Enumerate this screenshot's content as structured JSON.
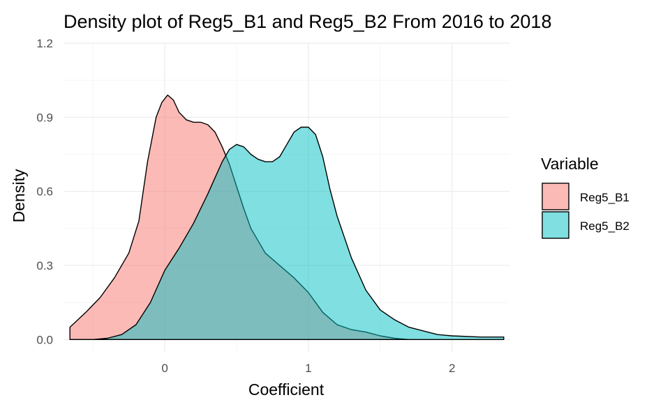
{
  "chart_data": {
    "type": "area",
    "title": "Density plot of Reg5_B1 and Reg5_B2 From 2016 to 2018",
    "xlabel": "Coefficient",
    "ylabel": "Density",
    "xlim": [
      -0.7,
      2.4
    ],
    "ylim": [
      -0.05,
      1.2
    ],
    "x_ticks": [
      0,
      1,
      2
    ],
    "x_tick_labels": [
      "0",
      "1",
      "2"
    ],
    "y_ticks": [
      0.0,
      0.3,
      0.6,
      0.9,
      1.2
    ],
    "y_tick_labels": [
      "0.0",
      "0.3",
      "0.6",
      "0.9",
      "1.2"
    ],
    "grid": true,
    "legend": {
      "title": "Variable",
      "position": "right"
    },
    "series": [
      {
        "name": "Reg5_B1",
        "color": "#F8766D",
        "x": [
          -0.66,
          -0.55,
          -0.45,
          -0.35,
          -0.25,
          -0.18,
          -0.12,
          -0.06,
          -0.02,
          0.02,
          0.06,
          0.1,
          0.15,
          0.2,
          0.25,
          0.3,
          0.35,
          0.4,
          0.45,
          0.5,
          0.55,
          0.6,
          0.7,
          0.8,
          0.9,
          1.0,
          1.1,
          1.2,
          1.3,
          1.4,
          1.5,
          1.6,
          1.7
        ],
        "y": [
          0.05,
          0.11,
          0.17,
          0.25,
          0.35,
          0.48,
          0.72,
          0.9,
          0.96,
          0.99,
          0.97,
          0.92,
          0.89,
          0.88,
          0.88,
          0.87,
          0.84,
          0.78,
          0.71,
          0.62,
          0.53,
          0.45,
          0.35,
          0.3,
          0.25,
          0.19,
          0.11,
          0.06,
          0.04,
          0.03,
          0.015,
          0.005,
          0.0
        ]
      },
      {
        "name": "Reg5_B2",
        "color": "#00BFC4",
        "x": [
          -0.66,
          -0.5,
          -0.4,
          -0.3,
          -0.2,
          -0.1,
          0.0,
          0.1,
          0.2,
          0.3,
          0.4,
          0.45,
          0.5,
          0.55,
          0.6,
          0.65,
          0.7,
          0.75,
          0.8,
          0.85,
          0.9,
          0.95,
          1.0,
          1.05,
          1.1,
          1.15,
          1.2,
          1.3,
          1.4,
          1.5,
          1.6,
          1.7,
          1.8,
          1.9,
          2.0,
          2.2,
          2.36
        ],
        "y": [
          0.0,
          0.0,
          0.005,
          0.02,
          0.06,
          0.15,
          0.28,
          0.37,
          0.47,
          0.59,
          0.72,
          0.77,
          0.79,
          0.78,
          0.75,
          0.73,
          0.72,
          0.72,
          0.74,
          0.79,
          0.84,
          0.86,
          0.86,
          0.83,
          0.74,
          0.61,
          0.5,
          0.33,
          0.2,
          0.12,
          0.08,
          0.05,
          0.035,
          0.02,
          0.015,
          0.01,
          0.01
        ]
      }
    ]
  }
}
